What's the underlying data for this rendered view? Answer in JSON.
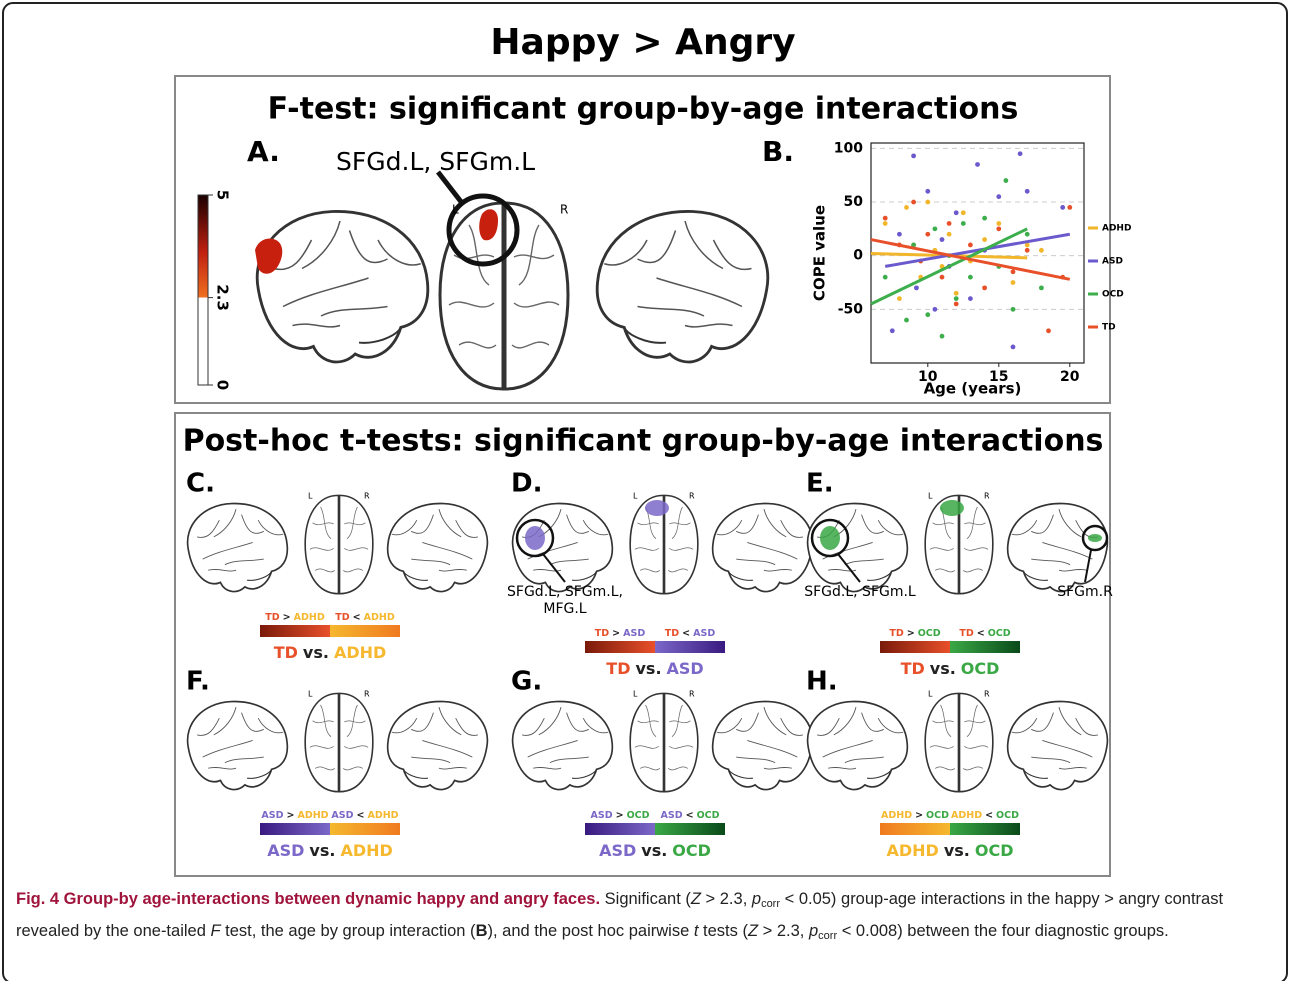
{
  "title": "Happy > Angry",
  "ftest": {
    "heading": "F-test: significant group-by-age interactions",
    "panel_a": {
      "label": "A.",
      "annotation": "SFGd.L, SFGm.L",
      "left": "L",
      "right": "R",
      "colorbar_ticks": [
        0,
        2.3,
        5
      ]
    }
  },
  "chart_data": {
    "type": "scatter",
    "label": "B.",
    "xlabel": "Age (years)",
    "ylabel": "COPE value",
    "xlim": [
      6,
      21
    ],
    "ylim": [
      -100,
      105
    ],
    "xticks": [
      10,
      15,
      20
    ],
    "yticks": [
      -50,
      0,
      50,
      100
    ],
    "grid": true,
    "series": [
      {
        "name": "ADHD",
        "color": "#f2b62a",
        "x": [
          7,
          8,
          8.5,
          9,
          9.5,
          10,
          10.5,
          11,
          11.5,
          12,
          12.5,
          13,
          14,
          15,
          16,
          17,
          18
        ],
        "values": [
          30,
          -40,
          45,
          10,
          -20,
          50,
          5,
          -10,
          20,
          -35,
          40,
          -5,
          15,
          30,
          -25,
          10,
          5
        ],
        "fit_x": [
          6,
          17
        ],
        "fit_values": [
          2,
          -2
        ]
      },
      {
        "name": "ASD",
        "color": "#6a5acd",
        "x": [
          7.5,
          8,
          9,
          9.2,
          10,
          10.5,
          11,
          11.5,
          12,
          13,
          13.5,
          14,
          15,
          16,
          16.5,
          17,
          19.5
        ],
        "values": [
          -70,
          20,
          93,
          -30,
          60,
          -50,
          15,
          -10,
          40,
          -40,
          85,
          5,
          55,
          -85,
          95,
          60,
          45
        ],
        "fit_x": [
          7,
          20
        ],
        "fit_values": [
          -10,
          20
        ]
      },
      {
        "name": "OCD",
        "color": "#3cae4b",
        "x": [
          7,
          8.5,
          9,
          10,
          10.5,
          11,
          11.5,
          12,
          12.5,
          13,
          14,
          15,
          15.5,
          16,
          17,
          18
        ],
        "values": [
          -20,
          -60,
          10,
          -55,
          25,
          -75,
          0,
          -40,
          30,
          -20,
          35,
          -10,
          70,
          -50,
          20,
          -30
        ],
        "fit_x": [
          6,
          17
        ],
        "fit_values": [
          -45,
          25
        ]
      },
      {
        "name": "TD",
        "color": "#e8502a",
        "x": [
          7,
          8,
          9,
          9.5,
          10,
          11,
          11.5,
          12,
          13,
          14,
          15,
          16,
          17,
          18.5,
          19.5,
          20
        ],
        "values": [
          35,
          10,
          50,
          -5,
          20,
          -20,
          30,
          -45,
          10,
          -30,
          25,
          -15,
          5,
          -70,
          -20,
          45
        ],
        "fit_x": [
          6,
          20
        ],
        "fit_values": [
          15,
          -22
        ]
      }
    ]
  },
  "posthoc": {
    "heading": "Post-hoc t-tests: significant group-by-age interactions",
    "left": "L",
    "right": "R",
    "panels": [
      {
        "label": "C.",
        "a": "TD",
        "b": "ADHD",
        "gt": ">",
        "lt": "<",
        "vs": "vs.",
        "annotations": []
      },
      {
        "label": "D.",
        "a": "TD",
        "b": "ASD",
        "gt": ">",
        "lt": "<",
        "vs": "vs.",
        "annotations": [
          {
            "lines": [
              "SFGd.L, SFGm.L,",
              "MFG.L"
            ]
          }
        ]
      },
      {
        "label": "E.",
        "a": "TD",
        "b": "OCD",
        "gt": ">",
        "lt": "<",
        "vs": "vs.",
        "annotations": [
          {
            "lines": [
              "SFGd.L, SFGm.L"
            ]
          },
          {
            "lines": [
              "SFGm.R"
            ]
          }
        ]
      },
      {
        "label": "F.",
        "a": "ASD",
        "b": "ADHD",
        "gt": ">",
        "lt": "<",
        "vs": "vs.",
        "annotations": []
      },
      {
        "label": "G.",
        "a": "ASD",
        "b": "OCD",
        "gt": ">",
        "lt": "<",
        "vs": "vs.",
        "annotations": []
      },
      {
        "label": "H.",
        "a": "ADHD",
        "b": "OCD",
        "gt": ">",
        "lt": "<",
        "vs": "vs.",
        "annotations": []
      }
    ]
  },
  "group_colors": {
    "TD": [
      "#e8502a",
      "#7a1a0a"
    ],
    "ADHD": [
      "#f5b82e",
      "#f07a20"
    ],
    "ASD": [
      "#7b68c8",
      "#3a1a80"
    ],
    "OCD": [
      "#3aa845",
      "#0a4a1a"
    ]
  },
  "caption": [
    {
      "text": "Fig. 4 Group-by age-interactions between dynamic happy and angry faces.",
      "style": "title"
    },
    {
      "text": " Significant (",
      "style": "normal"
    },
    {
      "text": "Z",
      "style": "italic"
    },
    {
      "text": " > 2.3, ",
      "style": "normal"
    },
    {
      "text": "p",
      "style": "italic"
    },
    {
      "text": "corr",
      "style": "sub"
    },
    {
      "text": " < 0.05) group-age interactions in the happy > angry contrast revealed by the one-tailed ",
      "style": "normal"
    },
    {
      "text": "F",
      "style": "italic"
    },
    {
      "text": " test, the age by group interaction (",
      "style": "normal"
    },
    {
      "text": "B",
      "style": "bold"
    },
    {
      "text": "), and the post hoc pairwise ",
      "style": "normal"
    },
    {
      "text": "t",
      "style": "italic"
    },
    {
      "text": " tests (",
      "style": "normal"
    },
    {
      "text": "Z",
      "style": "italic"
    },
    {
      "text": " > 2.3, ",
      "style": "normal"
    },
    {
      "text": "p",
      "style": "italic"
    },
    {
      "text": "corr",
      "style": "sub"
    },
    {
      "text": " < 0.008) between the four diagnostic groups.",
      "style": "normal"
    }
  ]
}
